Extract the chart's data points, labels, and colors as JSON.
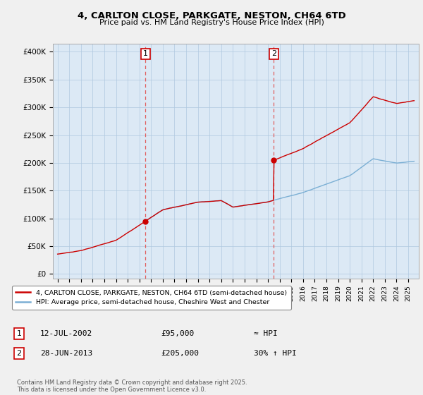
{
  "title_line1": "4, CARLTON CLOSE, PARKGATE, NESTON, CH64 6TD",
  "title_line2": "Price paid vs. HM Land Registry's House Price Index (HPI)",
  "yticks": [
    0,
    50000,
    100000,
    150000,
    200000,
    250000,
    300000,
    350000,
    400000
  ],
  "ytick_labels": [
    "£0",
    "£50K",
    "£100K",
    "£150K",
    "£200K",
    "£250K",
    "£300K",
    "£350K",
    "£400K"
  ],
  "ylim": [
    -8000,
    415000
  ],
  "xlim_left": 1994.6,
  "xlim_right": 2025.9,
  "sale1_date": 2002.53,
  "sale1_price": 95000,
  "sale2_date": 2013.49,
  "sale2_price": 205000,
  "red_line_color": "#cc0000",
  "blue_line_color": "#7bafd4",
  "dashed_line_color": "#e06060",
  "legend_label_red": "4, CARLTON CLOSE, PARKGATE, NESTON, CH64 6TD (semi-detached house)",
  "legend_label_blue": "HPI: Average price, semi-detached house, Cheshire West and Chester",
  "annotation1_label": "1",
  "annotation1_date": "12-JUL-2002",
  "annotation1_price": "£95,000",
  "annotation1_hpi": "≈ HPI",
  "annotation2_label": "2",
  "annotation2_date": "28-JUN-2013",
  "annotation2_price": "£205,000",
  "annotation2_hpi": "30% ↑ HPI",
  "footer": "Contains HM Land Registry data © Crown copyright and database right 2025.\nThis data is licensed under the Open Government Licence v3.0.",
  "background_color": "#f0f0f0",
  "plot_bg_color": "#dce9f5"
}
